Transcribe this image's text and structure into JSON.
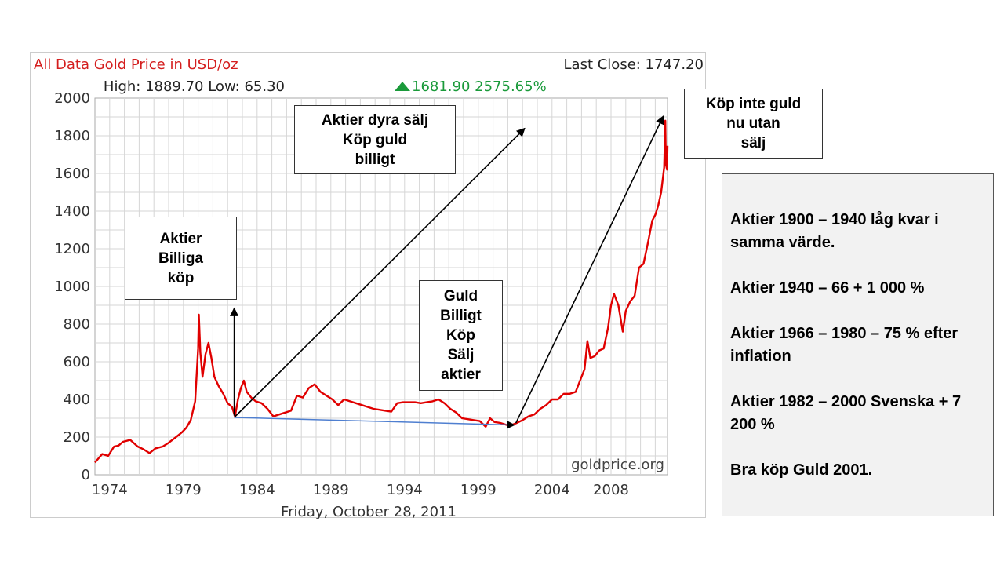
{
  "chart_data": {
    "type": "line",
    "title": "All Data Gold Price in USD/oz",
    "last_close": "Last Close: 1747.20",
    "stats": {
      "high_low": "High: 1889.70 Low: 65.30",
      "change": "1681.90 2575.65%"
    },
    "date_label": "Friday, October 28, 2011",
    "watermark": "goldprice.org",
    "xlabel": "",
    "ylabel": "",
    "xlim": [
      1973,
      2011.83
    ],
    "ylim": [
      0,
      2000
    ],
    "x_ticks": [
      "1974",
      "1979",
      "1984",
      "1989",
      "1994",
      "1999",
      "2004",
      "2008"
    ],
    "x_tick_values": [
      1974,
      1979,
      1984,
      1989,
      1994,
      1999,
      2004,
      2008
    ],
    "y_ticks": [
      0,
      200,
      400,
      600,
      800,
      1000,
      1200,
      1400,
      1600,
      1800,
      2000
    ],
    "grid": true,
    "line_color": "#e00000",
    "series": [
      {
        "points": [
          [
            1973.0,
            65
          ],
          [
            1973.5,
            110
          ],
          [
            1973.9,
            100
          ],
          [
            1974.3,
            150
          ],
          [
            1974.6,
            155
          ],
          [
            1974.9,
            175
          ],
          [
            1975.4,
            185
          ],
          [
            1975.9,
            150
          ],
          [
            1976.3,
            135
          ],
          [
            1976.7,
            115
          ],
          [
            1977.1,
            140
          ],
          [
            1977.6,
            150
          ],
          [
            1978.0,
            170
          ],
          [
            1978.5,
            200
          ],
          [
            1978.9,
            225
          ],
          [
            1979.2,
            250
          ],
          [
            1979.5,
            290
          ],
          [
            1979.8,
            390
          ],
          [
            1980.0,
            670
          ],
          [
            1980.05,
            850
          ],
          [
            1980.15,
            650
          ],
          [
            1980.3,
            520
          ],
          [
            1980.5,
            640
          ],
          [
            1980.7,
            700
          ],
          [
            1980.9,
            620
          ],
          [
            1981.1,
            520
          ],
          [
            1981.4,
            470
          ],
          [
            1981.7,
            430
          ],
          [
            1982.0,
            380
          ],
          [
            1982.3,
            360
          ],
          [
            1982.5,
            310
          ],
          [
            1982.7,
            400
          ],
          [
            1982.9,
            460
          ],
          [
            1983.1,
            500
          ],
          [
            1983.3,
            440
          ],
          [
            1983.6,
            410
          ],
          [
            1983.9,
            390
          ],
          [
            1984.3,
            380
          ],
          [
            1984.7,
            350
          ],
          [
            1985.1,
            310
          ],
          [
            1985.5,
            320
          ],
          [
            1985.9,
            330
          ],
          [
            1986.3,
            340
          ],
          [
            1986.7,
            420
          ],
          [
            1987.1,
            410
          ],
          [
            1987.5,
            460
          ],
          [
            1987.9,
            480
          ],
          [
            1988.3,
            440
          ],
          [
            1988.7,
            420
          ],
          [
            1989.1,
            400
          ],
          [
            1989.5,
            370
          ],
          [
            1989.9,
            400
          ],
          [
            1990.3,
            390
          ],
          [
            1990.7,
            380
          ],
          [
            1991.1,
            370
          ],
          [
            1991.5,
            360
          ],
          [
            1991.9,
            350
          ],
          [
            1992.3,
            345
          ],
          [
            1992.7,
            340
          ],
          [
            1993.1,
            335
          ],
          [
            1993.5,
            380
          ],
          [
            1993.9,
            385
          ],
          [
            1994.3,
            385
          ],
          [
            1994.7,
            385
          ],
          [
            1995.1,
            380
          ],
          [
            1995.5,
            385
          ],
          [
            1995.9,
            390
          ],
          [
            1996.3,
            400
          ],
          [
            1996.7,
            380
          ],
          [
            1997.1,
            350
          ],
          [
            1997.5,
            330
          ],
          [
            1997.9,
            300
          ],
          [
            1998.3,
            295
          ],
          [
            1998.7,
            290
          ],
          [
            1999.1,
            285
          ],
          [
            1999.5,
            255
          ],
          [
            1999.8,
            300
          ],
          [
            2000.1,
            280
          ],
          [
            2000.5,
            275
          ],
          [
            2000.9,
            265
          ],
          [
            2001.2,
            262
          ],
          [
            2001.6,
            275
          ],
          [
            2002.0,
            290
          ],
          [
            2002.4,
            310
          ],
          [
            2002.8,
            320
          ],
          [
            2003.2,
            350
          ],
          [
            2003.6,
            370
          ],
          [
            2004.0,
            400
          ],
          [
            2004.4,
            400
          ],
          [
            2004.8,
            430
          ],
          [
            2005.2,
            430
          ],
          [
            2005.6,
            440
          ],
          [
            2005.9,
            500
          ],
          [
            2006.2,
            560
          ],
          [
            2006.4,
            710
          ],
          [
            2006.6,
            620
          ],
          [
            2006.9,
            630
          ],
          [
            2007.2,
            660
          ],
          [
            2007.5,
            670
          ],
          [
            2007.8,
            780
          ],
          [
            2008.0,
            900
          ],
          [
            2008.2,
            960
          ],
          [
            2008.5,
            900
          ],
          [
            2008.8,
            760
          ],
          [
            2009.0,
            870
          ],
          [
            2009.3,
            920
          ],
          [
            2009.6,
            950
          ],
          [
            2009.9,
            1100
          ],
          [
            2010.2,
            1120
          ],
          [
            2010.5,
            1230
          ],
          [
            2010.8,
            1350
          ],
          [
            2011.0,
            1380
          ],
          [
            2011.2,
            1430
          ],
          [
            2011.4,
            1500
          ],
          [
            2011.6,
            1630
          ],
          [
            2011.68,
            1880
          ],
          [
            2011.72,
            1650
          ],
          [
            2011.8,
            1620
          ],
          [
            2011.83,
            1747
          ]
        ]
      }
    ],
    "trend_line": {
      "from": [
        1982.5,
        300
      ],
      "to": [
        2001.5,
        260
      ],
      "color": "#4f7fd0"
    },
    "arrows": [
      {
        "from": [
          1982.5,
          310
        ],
        "to": [
          1982.5,
          880
        ]
      },
      {
        "from": [
          1982.5,
          300
        ],
        "to": [
          2002.2,
          1835
        ]
      },
      {
        "from": [
          2001.6,
          270
        ],
        "to": [
          2011.6,
          1900
        ]
      }
    ]
  },
  "callouts": {
    "billiga": "Aktier\nBilliga\nköp",
    "dyra": "Aktier dyra sälj\nKöp guld\nbilligt",
    "guld": "Guld\nBilligt\nKöp\nSälj\naktier",
    "inte": "Köp inte guld\nnu utan\nsälj"
  },
  "info": {
    "p1": "Aktier 1900 – 1940 låg kvar i samma värde.",
    "p2": "Aktier 1940 – 66 + 1 000 %",
    "p3": "Aktier 1966 – 1980 – 75 % efter inflation",
    "p4": "Aktier 1982 – 2000 Svenska + 7 200 %",
    "p5": "Bra köp Guld 2001."
  }
}
